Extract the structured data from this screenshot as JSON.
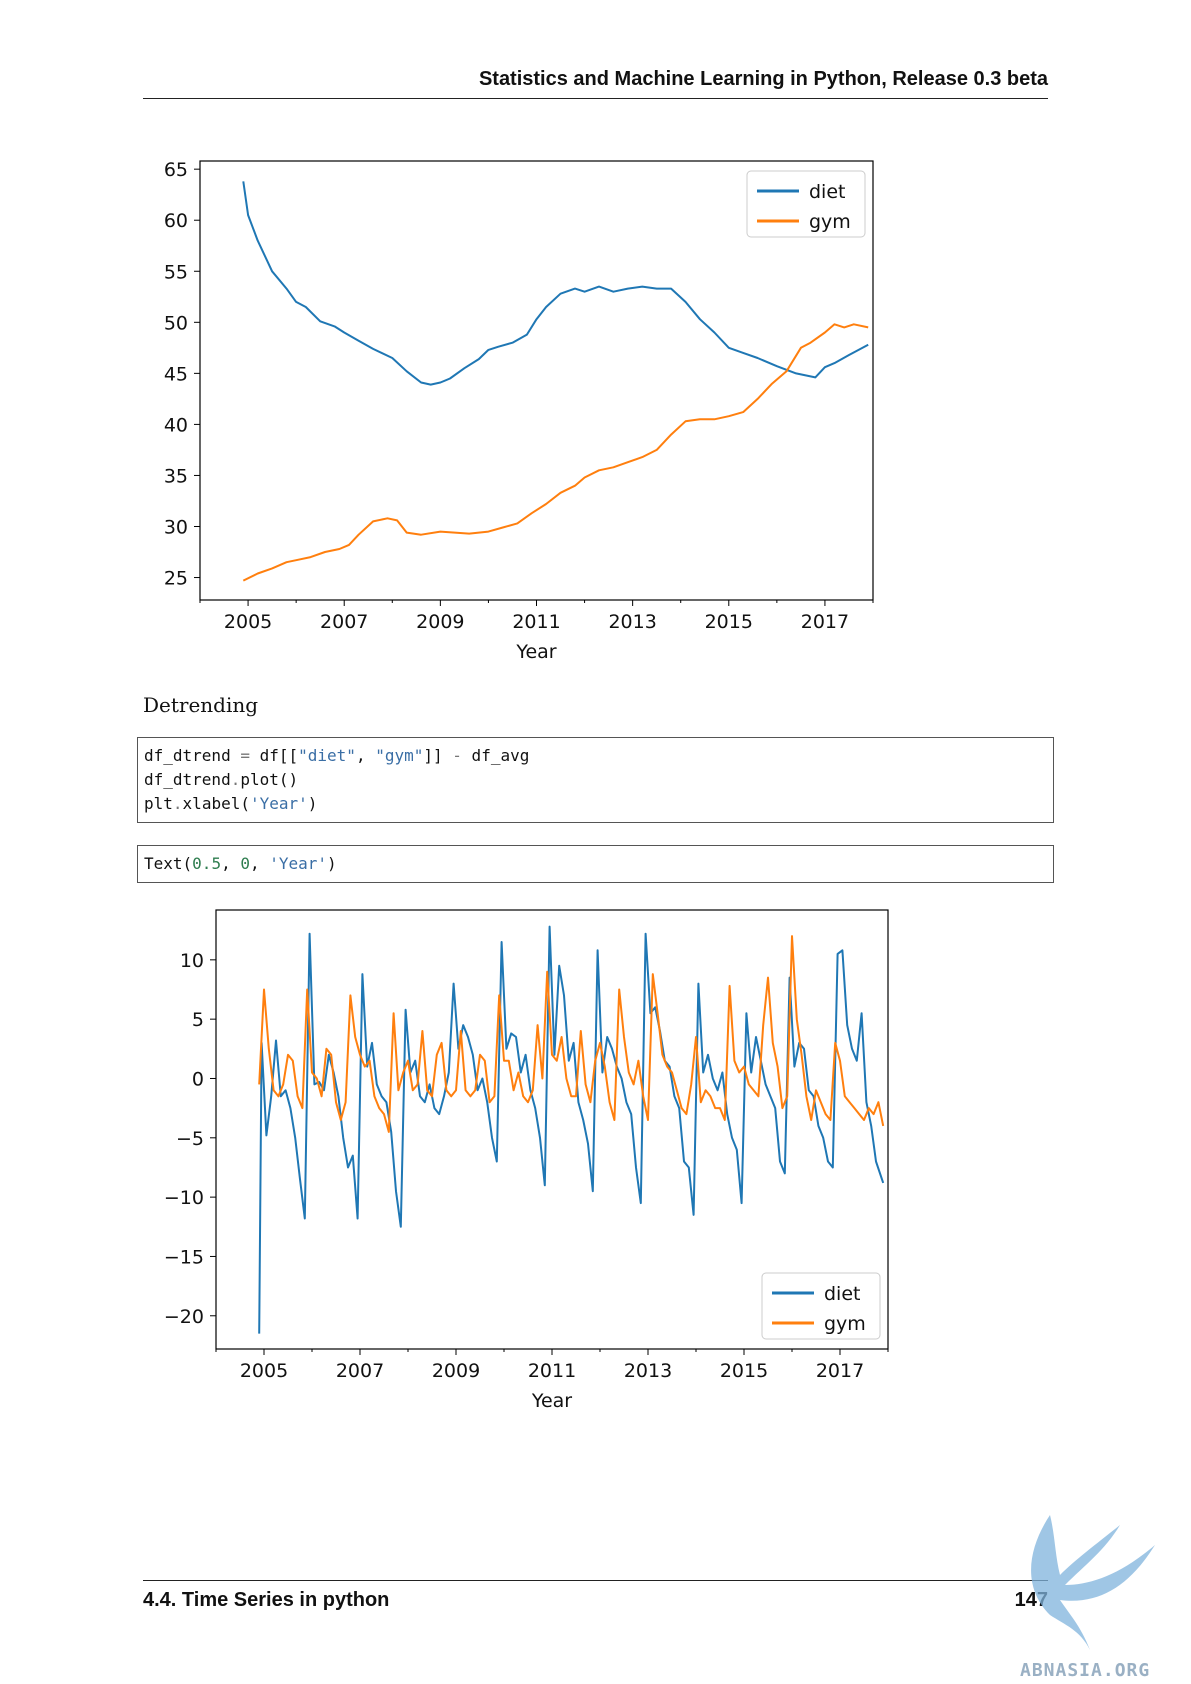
{
  "header": {
    "title": "Statistics and Machine Learning in Python, Release 0.3 beta"
  },
  "section": {
    "label": "Detrending"
  },
  "code_cell": {
    "lines": [
      "df_dtrend = df[[\"diet\", \"gym\"]] - df_avg",
      "df_dtrend.plot()",
      "plt.xlabel('Year')"
    ]
  },
  "output_cell": {
    "text": "Text(0.5, 0, 'Year')"
  },
  "footer": {
    "section": "4.4.  Time Series in python",
    "page": "147"
  },
  "watermark": {
    "text": "ABNASIA.ORG"
  },
  "colors": {
    "diet": "#1f77b4",
    "gym": "#ff7f0e"
  },
  "chart_data": [
    {
      "type": "line",
      "xlabel": "Year",
      "ylabel": "",
      "title": "",
      "xlim": [
        2004.0,
        2018.0
      ],
      "ylim": [
        22.8,
        65.8
      ],
      "xticks": [
        2005,
        2007,
        2009,
        2011,
        2013,
        2015,
        2017
      ],
      "yticks": [
        25,
        30,
        35,
        40,
        45,
        50,
        55,
        60,
        65
      ],
      "legend": {
        "position": "top-right",
        "entries": [
          "diet",
          "gym"
        ]
      },
      "series": [
        {
          "name": "diet",
          "x": [
            2004.9,
            2005.0,
            2005.2,
            2005.5,
            2005.8,
            2006.0,
            2006.2,
            2006.5,
            2006.8,
            2007.0,
            2007.3,
            2007.6,
            2008.0,
            2008.3,
            2008.6,
            2008.8,
            2009.0,
            2009.2,
            2009.5,
            2009.8,
            2010.0,
            2010.2,
            2010.5,
            2010.8,
            2011.0,
            2011.2,
            2011.5,
            2011.8,
            2012.0,
            2012.3,
            2012.6,
            2012.9,
            2013.2,
            2013.5,
            2013.8,
            2014.1,
            2014.4,
            2014.7,
            2015.0,
            2015.3,
            2015.6,
            2016.0,
            2016.4,
            2016.8,
            2017.0,
            2017.2,
            2017.5,
            2017.7,
            2017.9
          ],
          "values": [
            63.8,
            60.5,
            58.0,
            55.0,
            53.3,
            52.0,
            51.5,
            50.1,
            49.6,
            49.0,
            48.2,
            47.4,
            46.5,
            45.2,
            44.1,
            43.9,
            44.1,
            44.5,
            45.5,
            46.4,
            47.3,
            47.6,
            48.0,
            48.8,
            50.3,
            51.5,
            52.8,
            53.3,
            53.0,
            53.5,
            53.0,
            53.3,
            53.5,
            53.3,
            53.3,
            52.0,
            50.3,
            49.0,
            47.5,
            47.0,
            46.5,
            45.7,
            45.0,
            44.6,
            45.6,
            46.0,
            46.8,
            47.3,
            47.8
          ]
        },
        {
          "name": "gym",
          "x": [
            2004.9,
            2005.2,
            2005.5,
            2005.8,
            2006.0,
            2006.3,
            2006.6,
            2006.9,
            2007.1,
            2007.3,
            2007.6,
            2007.9,
            2008.1,
            2008.3,
            2008.6,
            2009.0,
            2009.3,
            2009.6,
            2010.0,
            2010.3,
            2010.6,
            2010.9,
            2011.2,
            2011.5,
            2011.8,
            2012.0,
            2012.3,
            2012.6,
            2012.9,
            2013.2,
            2013.5,
            2013.8,
            2014.1,
            2014.4,
            2014.7,
            2015.0,
            2015.3,
            2015.6,
            2015.9,
            2016.2,
            2016.5,
            2016.7,
            2017.0,
            2017.2,
            2017.4,
            2017.6,
            2017.9
          ],
          "values": [
            24.7,
            25.4,
            25.9,
            26.5,
            26.7,
            27.0,
            27.5,
            27.8,
            28.2,
            29.2,
            30.5,
            30.8,
            30.6,
            29.4,
            29.2,
            29.5,
            29.4,
            29.3,
            29.5,
            29.9,
            30.3,
            31.3,
            32.2,
            33.3,
            34.0,
            34.8,
            35.5,
            35.8,
            36.3,
            36.8,
            37.5,
            39.0,
            40.3,
            40.5,
            40.5,
            40.8,
            41.2,
            42.5,
            44.0,
            45.2,
            47.5,
            48.0,
            49.0,
            49.8,
            49.5,
            49.8,
            49.5
          ]
        }
      ]
    },
    {
      "type": "line",
      "xlabel": "Year",
      "ylabel": "",
      "title": "",
      "xlim": [
        2004.0,
        2018.0
      ],
      "ylim": [
        -22.8,
        14.2
      ],
      "xticks": [
        2005,
        2007,
        2009,
        2011,
        2013,
        2015,
        2017
      ],
      "yticks": [
        10,
        5,
        0,
        -5,
        -10,
        -15,
        -20
      ],
      "yticklabels": [
        "10",
        "5",
        "0",
        "−5",
        "−10",
        "−15",
        "−20"
      ],
      "legend": {
        "position": "bottom-right",
        "entries": [
          "diet",
          "gym"
        ]
      },
      "series": [
        {
          "name": "diet",
          "x": [
            2004.9,
            2004.95,
            2005.05,
            2005.15,
            2005.25,
            2005.35,
            2005.45,
            2005.55,
            2005.65,
            2005.75,
            2005.85,
            2005.95,
            2006.05,
            2006.15,
            2006.25,
            2006.35,
            2006.45,
            2006.55,
            2006.65,
            2006.75,
            2006.85,
            2006.95,
            2007.05,
            2007.15,
            2007.25,
            2007.35,
            2007.45,
            2007.55,
            2007.65,
            2007.75,
            2007.85,
            2007.95,
            2008.05,
            2008.15,
            2008.25,
            2008.35,
            2008.45,
            2008.55,
            2008.65,
            2008.75,
            2008.85,
            2008.95,
            2009.05,
            2009.15,
            2009.25,
            2009.35,
            2009.45,
            2009.55,
            2009.65,
            2009.75,
            2009.85,
            2009.95,
            2010.05,
            2010.15,
            2010.25,
            2010.35,
            2010.45,
            2010.55,
            2010.65,
            2010.75,
            2010.85,
            2010.95,
            2011.05,
            2011.15,
            2011.25,
            2011.35,
            2011.45,
            2011.55,
            2011.65,
            2011.75,
            2011.85,
            2011.95,
            2012.05,
            2012.15,
            2012.25,
            2012.35,
            2012.45,
            2012.55,
            2012.65,
            2012.75,
            2012.85,
            2012.95,
            2013.05,
            2013.15,
            2013.25,
            2013.35,
            2013.45,
            2013.55,
            2013.65,
            2013.75,
            2013.85,
            2013.95,
            2014.05,
            2014.15,
            2014.25,
            2014.35,
            2014.45,
            2014.55,
            2014.65,
            2014.75,
            2014.85,
            2014.95,
            2015.05,
            2015.15,
            2015.25,
            2015.35,
            2015.45,
            2015.55,
            2015.65,
            2015.75,
            2015.85,
            2015.95,
            2016.05,
            2016.15,
            2016.25,
            2016.35,
            2016.45,
            2016.55,
            2016.65,
            2016.75,
            2016.85,
            2016.95,
            2017.05,
            2017.15,
            2017.25,
            2017.35,
            2017.45,
            2017.55,
            2017.65,
            2017.75,
            2017.9
          ],
          "values": [
            -21.5,
            3.0,
            -4.8,
            -1.5,
            3.2,
            -1.5,
            -1.0,
            -2.5,
            -5.0,
            -8.5,
            -11.8,
            12.2,
            -0.5,
            -0.3,
            -1.0,
            2.0,
            0.5,
            -1.5,
            -5.0,
            -7.5,
            -6.5,
            -11.8,
            8.8,
            1.0,
            3.0,
            -0.5,
            -1.5,
            -2.0,
            -4.5,
            -9.5,
            -12.5,
            5.8,
            0.5,
            1.5,
            -1.5,
            -2.0,
            -0.5,
            -2.5,
            -3.0,
            -1.5,
            0.5,
            8.0,
            2.5,
            4.5,
            3.5,
            2.0,
            -1.0,
            0.0,
            -2.0,
            -5.0,
            -7.0,
            11.5,
            2.5,
            3.8,
            3.5,
            0.5,
            2.0,
            -1.0,
            -2.5,
            -5.0,
            -9.0,
            12.8,
            2.0,
            9.5,
            7.0,
            1.5,
            3.0,
            -2.0,
            -3.5,
            -5.5,
            -9.5,
            10.8,
            0.5,
            3.5,
            2.5,
            1.0,
            0.0,
            -2.0,
            -3.0,
            -7.5,
            -10.5,
            12.2,
            5.5,
            6.0,
            4.0,
            1.5,
            1.0,
            -1.5,
            -2.5,
            -7.0,
            -7.5,
            -11.5,
            8.0,
            0.5,
            2.0,
            0.0,
            -1.0,
            0.5,
            -3.0,
            -5.0,
            -6.0,
            -10.5,
            5.5,
            0.5,
            3.5,
            1.5,
            -0.5,
            -1.5,
            -2.5,
            -7.0,
            -8.0,
            8.5,
            1.0,
            3.0,
            2.5,
            -1.0,
            -1.5,
            -4.0,
            -5.0,
            -7.0,
            -7.5,
            10.5,
            10.8,
            4.5,
            2.5,
            1.5,
            5.5,
            -2.0,
            -4.0,
            -7.0,
            -8.8
          ]
        },
        {
          "name": "gym",
          "x": [
            2004.9,
            2005.0,
            2005.1,
            2005.2,
            2005.3,
            2005.4,
            2005.5,
            2005.6,
            2005.7,
            2005.8,
            2005.9,
            2006.0,
            2006.1,
            2006.2,
            2006.3,
            2006.4,
            2006.5,
            2006.6,
            2006.7,
            2006.8,
            2006.9,
            2007.0,
            2007.1,
            2007.2,
            2007.3,
            2007.4,
            2007.5,
            2007.6,
            2007.7,
            2007.8,
            2007.9,
            2008.0,
            2008.1,
            2008.2,
            2008.3,
            2008.4,
            2008.5,
            2008.6,
            2008.7,
            2008.8,
            2008.9,
            2009.0,
            2009.1,
            2009.2,
            2009.3,
            2009.4,
            2009.5,
            2009.6,
            2009.7,
            2009.8,
            2009.9,
            2010.0,
            2010.1,
            2010.2,
            2010.3,
            2010.4,
            2010.5,
            2010.6,
            2010.7,
            2010.8,
            2010.9,
            2011.0,
            2011.1,
            2011.2,
            2011.3,
            2011.4,
            2011.5,
            2011.6,
            2011.7,
            2011.8,
            2011.9,
            2012.0,
            2012.1,
            2012.2,
            2012.3,
            2012.4,
            2012.5,
            2012.6,
            2012.7,
            2012.8,
            2012.9,
            2013.0,
            2013.1,
            2013.2,
            2013.3,
            2013.4,
            2013.5,
            2013.6,
            2013.7,
            2013.8,
            2013.9,
            2014.0,
            2014.1,
            2014.2,
            2014.3,
            2014.4,
            2014.5,
            2014.6,
            2014.7,
            2014.8,
            2014.9,
            2015.0,
            2015.1,
            2015.2,
            2015.3,
            2015.4,
            2015.5,
            2015.6,
            2015.7,
            2015.8,
            2015.9,
            2016.0,
            2016.1,
            2016.2,
            2016.3,
            2016.4,
            2016.5,
            2016.6,
            2016.7,
            2016.8,
            2016.9,
            2017.0,
            2017.1,
            2017.2,
            2017.3,
            2017.4,
            2017.5,
            2017.6,
            2017.7,
            2017.8,
            2017.9
          ],
          "values": [
            -0.5,
            7.5,
            2.5,
            -1.0,
            -1.5,
            -0.5,
            2.0,
            1.5,
            -1.5,
            -2.5,
            7.5,
            0.5,
            0.0,
            -1.5,
            2.5,
            2.0,
            -2.0,
            -3.5,
            -2.0,
            7.0,
            3.5,
            2.0,
            1.0,
            1.5,
            -1.5,
            -2.5,
            -3.0,
            -4.5,
            5.5,
            -1.0,
            0.5,
            1.5,
            -1.0,
            -0.5,
            4.0,
            -1.0,
            -1.5,
            2.0,
            3.0,
            -1.0,
            -1.5,
            -1.0,
            4.0,
            -1.0,
            -1.5,
            -1.0,
            2.0,
            1.5,
            -2.0,
            -1.5,
            7.0,
            1.5,
            1.5,
            -1.0,
            0.5,
            -1.5,
            -2.0,
            -1.0,
            4.5,
            0.0,
            9.0,
            2.0,
            1.5,
            3.5,
            0.0,
            -1.5,
            -1.5,
            4.0,
            -0.5,
            -2.0,
            1.5,
            3.0,
            1.0,
            -2.0,
            -3.5,
            7.5,
            3.5,
            0.5,
            -0.5,
            1.5,
            -1.5,
            -3.5,
            8.8,
            5.5,
            2.0,
            1.0,
            0.5,
            -1.0,
            -2.5,
            -3.0,
            -0.5,
            3.5,
            -2.0,
            -1.0,
            -1.5,
            -2.5,
            -2.5,
            -3.5,
            7.8,
            1.5,
            0.5,
            1.0,
            -0.5,
            -1.0,
            -1.5,
            4.5,
            8.5,
            3.0,
            1.0,
            -2.5,
            -1.5,
            12.0,
            5.0,
            2.0,
            -1.5,
            -3.5,
            -1.0,
            -2.0,
            -3.0,
            -3.5,
            3.0,
            1.5,
            -1.5,
            -2.0,
            -2.5,
            -3.0,
            -3.5,
            -2.5,
            -3.0,
            -2.0,
            -4.0
          ]
        }
      ]
    }
  ]
}
